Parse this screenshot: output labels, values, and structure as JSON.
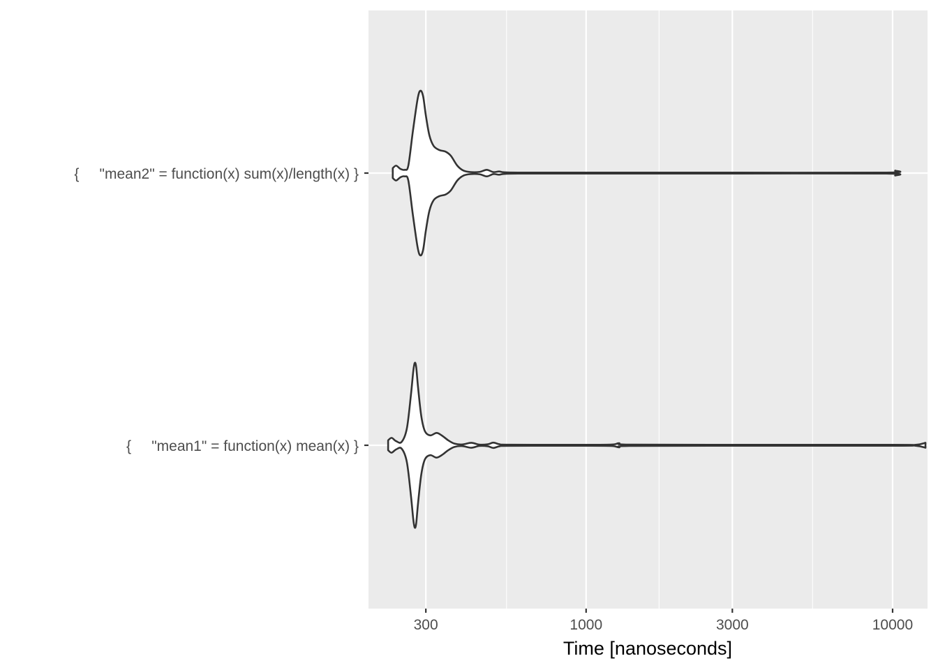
{
  "chart_data": {
    "type": "violin",
    "orientation": "horizontal",
    "x_scale": "log10",
    "xlabel": "Time [nanoseconds]",
    "ylabel": "",
    "x_range": [
      195,
      13000
    ],
    "x_ticks": [
      300,
      1000,
      3000,
      10000
    ],
    "x_tick_labels": [
      "300",
      "1000",
      "3000",
      "10000"
    ],
    "x_minor_ticks": [
      550,
      1730,
      5480
    ],
    "grid": true,
    "legend": "none",
    "categories": [
      "{     \"mean2\" = function(x) sum(x)/length(x) }",
      "{     \"mean1\" = function(x) mean(x) }"
    ],
    "series": [
      {
        "category_index": 0,
        "density_profile": [
          [
            234,
            0.06
          ],
          [
            240,
            0.09
          ],
          [
            248,
            0.05
          ],
          [
            256,
            0.04
          ],
          [
            263,
            0.09
          ],
          [
            272,
            0.5
          ],
          [
            282,
            0.9
          ],
          [
            288,
            1.0
          ],
          [
            294,
            0.93
          ],
          [
            300,
            0.7
          ],
          [
            308,
            0.46
          ],
          [
            318,
            0.33
          ],
          [
            332,
            0.28
          ],
          [
            348,
            0.26
          ],
          [
            362,
            0.21
          ],
          [
            380,
            0.09
          ],
          [
            398,
            0.03
          ],
          [
            420,
            0.012
          ],
          [
            450,
            0.015
          ],
          [
            474,
            0.04
          ],
          [
            498,
            0.012
          ],
          [
            520,
            0.02
          ],
          [
            540,
            0.01
          ],
          [
            600,
            0.006
          ],
          [
            1000,
            0.006
          ],
          [
            3000,
            0.006
          ],
          [
            9500,
            0.006
          ],
          [
            10200,
            0.03
          ]
        ]
      },
      {
        "category_index": 1,
        "density_profile": [
          [
            226,
            0.06
          ],
          [
            232,
            0.09
          ],
          [
            240,
            0.05
          ],
          [
            250,
            0.04
          ],
          [
            260,
            0.2
          ],
          [
            268,
            0.6
          ],
          [
            273,
            0.9
          ],
          [
            276,
            1.0
          ],
          [
            279,
            0.95
          ],
          [
            283,
            0.7
          ],
          [
            290,
            0.35
          ],
          [
            298,
            0.17
          ],
          [
            310,
            0.12
          ],
          [
            325,
            0.15
          ],
          [
            338,
            0.12
          ],
          [
            355,
            0.06
          ],
          [
            372,
            0.02
          ],
          [
            395,
            0.01
          ],
          [
            422,
            0.03
          ],
          [
            448,
            0.008
          ],
          [
            478,
            0.012
          ],
          [
            498,
            0.032
          ],
          [
            522,
            0.012
          ],
          [
            560,
            0.007
          ],
          [
            900,
            0.006
          ],
          [
            1200,
            0.008
          ],
          [
            1280,
            0.025
          ],
          [
            1380,
            0.008
          ],
          [
            3000,
            0.006
          ],
          [
            10000,
            0.006
          ],
          [
            11900,
            0.006
          ],
          [
            12800,
            0.03
          ]
        ]
      }
    ]
  },
  "colors": {
    "panel_background": "#ebebeb",
    "grid_line": "#ffffff",
    "violin_fill": "#ffffff",
    "violin_outline": "#333333",
    "tick_text": "#4d4d4d",
    "title_text": "#000000",
    "tick_mark": "#333333"
  }
}
